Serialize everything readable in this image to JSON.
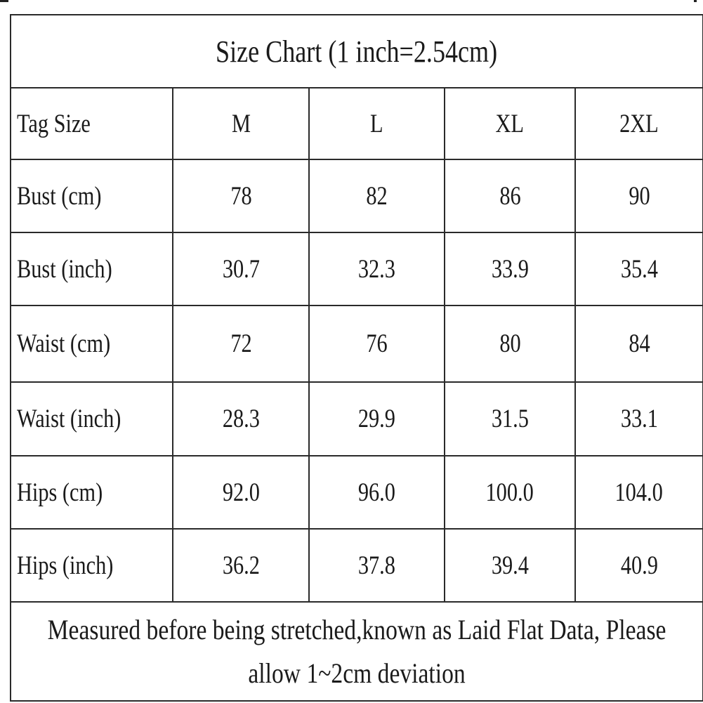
{
  "table": {
    "title": "Size Chart (1 inch=2.54cm)",
    "header": {
      "label": "Tag Size",
      "sizes": [
        "M",
        "L",
        "XL",
        "2XL"
      ]
    },
    "rows": [
      {
        "label": "Bust (cm)",
        "values": [
          "78",
          "82",
          "86",
          "90"
        ]
      },
      {
        "label": "Bust (inch)",
        "values": [
          "30.7",
          "32.3",
          "33.9",
          "35.4"
        ]
      },
      {
        "label": "Waist (cm)",
        "values": [
          "72",
          "76",
          "80",
          "84"
        ]
      },
      {
        "label": "Waist (inch)",
        "values": [
          "28.3",
          "29.9",
          "31.5",
          "33.1"
        ]
      },
      {
        "label": "Hips (cm)",
        "values": [
          "92.0",
          "96.0",
          "100.0",
          "104.0"
        ]
      },
      {
        "label": "Hips (inch)",
        "values": [
          "36.2",
          "37.8",
          "39.4",
          "40.9"
        ]
      }
    ],
    "note": "Measured before being stretched,known as Laid Flat Data, Please allow 1~2cm deviation"
  }
}
